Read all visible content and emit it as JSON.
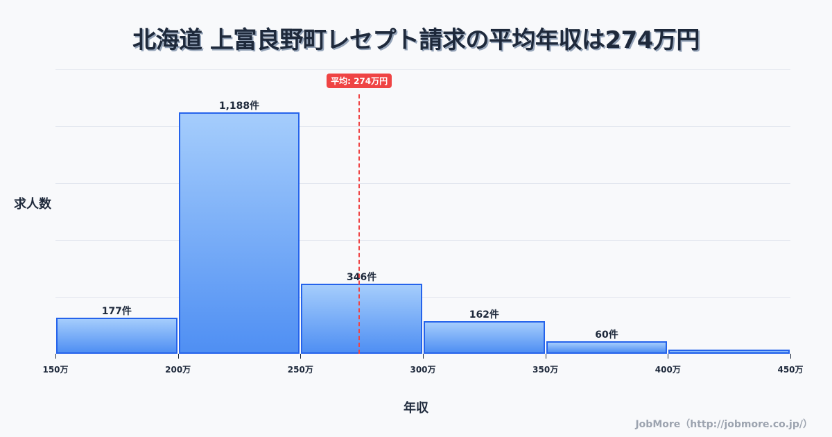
{
  "title": "北海道 上富良野町レセプト請求の平均年収は274万円",
  "y_axis_label": "求人数",
  "x_axis_label": "年収",
  "credit": "JobMore（http://jobmore.co.jp/）",
  "average_badge": "平均: 274万円",
  "colors": {
    "bar_border": "#2563eb",
    "bar_top": "#a5cdfc",
    "bar_bottom": "#4f8ff3",
    "average_line": "#ef4444"
  },
  "chart_data": {
    "type": "bar",
    "title": "北海道 上富良野町レセプト請求の平均年収は274万円",
    "xlabel": "年収",
    "ylabel": "求人数",
    "categories": [
      "150万-200万",
      "200万-250万",
      "250万-300万",
      "300万-350万",
      "350万-400万",
      "400万-450万"
    ],
    "bin_edges": [
      150,
      200,
      250,
      300,
      350,
      400,
      450
    ],
    "tick_labels": [
      "150万",
      "200万",
      "250万",
      "300万",
      "350万",
      "400万",
      "450万"
    ],
    "values": [
      177,
      1188,
      346,
      162,
      60,
      20
    ],
    "value_labels": [
      "177件",
      "1,188件",
      "346件",
      "162件",
      "60件",
      ""
    ],
    "ylim": [
      0,
      1400
    ],
    "grid": true,
    "average": 274,
    "annotations": [
      "平均: 274万円"
    ]
  }
}
